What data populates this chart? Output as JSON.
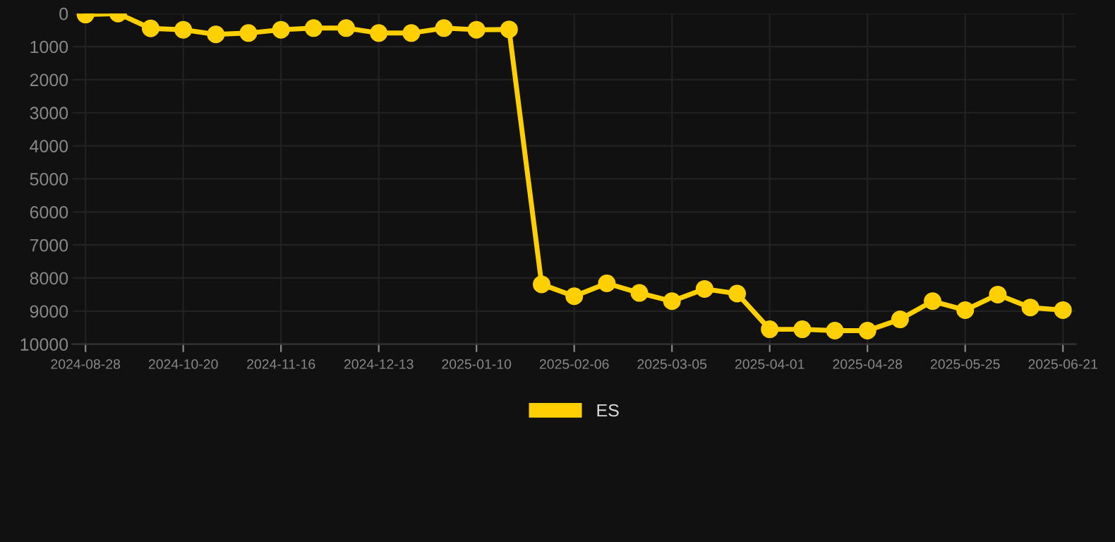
{
  "chart_data": {
    "type": "line",
    "categories": [
      "2024-08-28",
      null,
      null,
      "2024-10-20",
      null,
      null,
      "2024-11-16",
      null,
      null,
      "2024-12-13",
      null,
      null,
      "2025-01-10",
      null,
      null,
      "2025-02-06",
      null,
      null,
      "2025-03-05",
      null,
      null,
      "2025-04-01",
      null,
      null,
      "2025-04-28",
      null,
      null,
      "2025-05-25",
      null,
      null,
      "2025-06-21"
    ],
    "series": [
      {
        "name": "ES",
        "color": "#ffd000",
        "values": [
          30,
          0,
          450,
          490,
          630,
          590,
          490,
          440,
          440,
          590,
          590,
          440,
          490,
          480,
          8190,
          8550,
          8160,
          8450,
          8700,
          8330,
          8470,
          9550,
          9550,
          9590,
          9590,
          9250,
          8700,
          8970,
          8500,
          8890,
          8970
        ]
      }
    ],
    "ylim": [
      10000,
      0
    ],
    "yticks": [
      0,
      1000,
      2000,
      3000,
      4000,
      5000,
      6000,
      7000,
      8000,
      9000,
      10000
    ],
    "grid": true,
    "legend": "bottom",
    "marker": "circle",
    "line_style": "solid"
  }
}
